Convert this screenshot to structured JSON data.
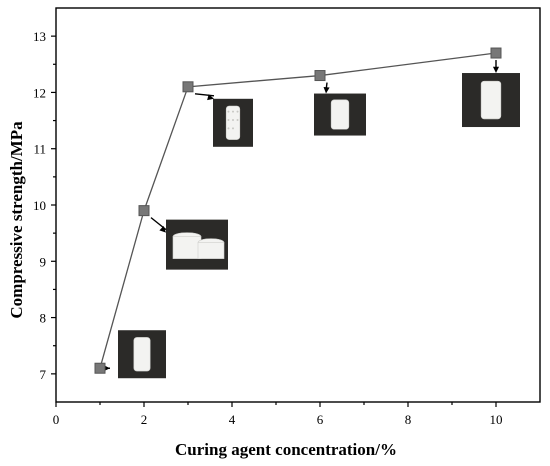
{
  "chart_data": {
    "type": "line",
    "title": "",
    "xlabel": "Curing agent concentration/%",
    "ylabel": "Compressive strength/MPa",
    "xlim": [
      0,
      11
    ],
    "ylim": [
      6.5,
      13.5
    ],
    "xticks": [
      0,
      2,
      4,
      6,
      8,
      10
    ],
    "yticks": [
      7,
      8,
      9,
      10,
      11,
      12,
      13
    ],
    "grid": false,
    "marker": "square",
    "colors": {
      "line": "#555555",
      "marker": "#777777",
      "photo_background": "#2b2a28",
      "specimen": "#f3f3f1"
    },
    "series": [
      {
        "x": [
          1,
          2,
          3,
          6,
          10
        ],
        "y": [
          7.1,
          9.9,
          12.1,
          12.3,
          12.7
        ]
      }
    ],
    "annotations": [
      {
        "type": "photo",
        "x": 1,
        "y": 7.1,
        "content": "cylindrical specimen, intact"
      },
      {
        "type": "photo",
        "x": 2,
        "y": 9.9,
        "content": "two fractured specimens"
      },
      {
        "type": "photo",
        "x": 3,
        "y": 12.1,
        "content": "cylindrical specimen, porous surface"
      },
      {
        "type": "photo",
        "x": 6,
        "y": 12.3,
        "content": "cylindrical specimen, smooth"
      },
      {
        "type": "photo",
        "x": 10,
        "y": 12.7,
        "content": "cylindrical specimen, smooth"
      }
    ]
  }
}
